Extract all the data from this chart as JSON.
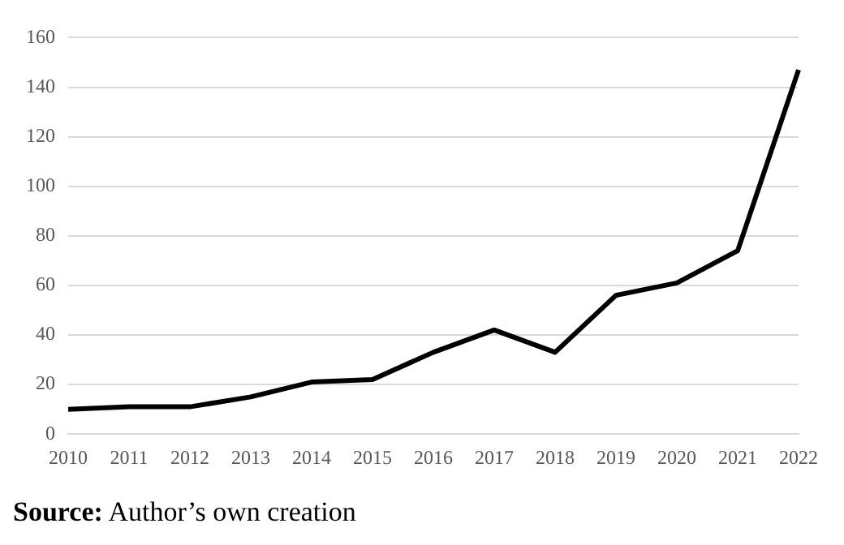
{
  "chart_data": {
    "type": "line",
    "categories": [
      "2010",
      "2011",
      "2012",
      "2013",
      "2014",
      "2015",
      "2016",
      "2017",
      "2018",
      "2019",
      "2020",
      "2021",
      "2022"
    ],
    "series": [
      {
        "color": "#000000",
        "values": [
          10,
          11,
          11,
          15,
          21,
          22,
          33,
          42,
          33,
          56,
          61,
          74,
          147
        ]
      }
    ],
    "ylim": [
      0,
      160
    ],
    "yticks": [
      0,
      20,
      40,
      60,
      80,
      100,
      120,
      140,
      160
    ],
    "grid": "y",
    "legend": false,
    "marker": "none",
    "line_style": "solid",
    "annotations": [
      "Source: Author’s own creation"
    ]
  }
}
